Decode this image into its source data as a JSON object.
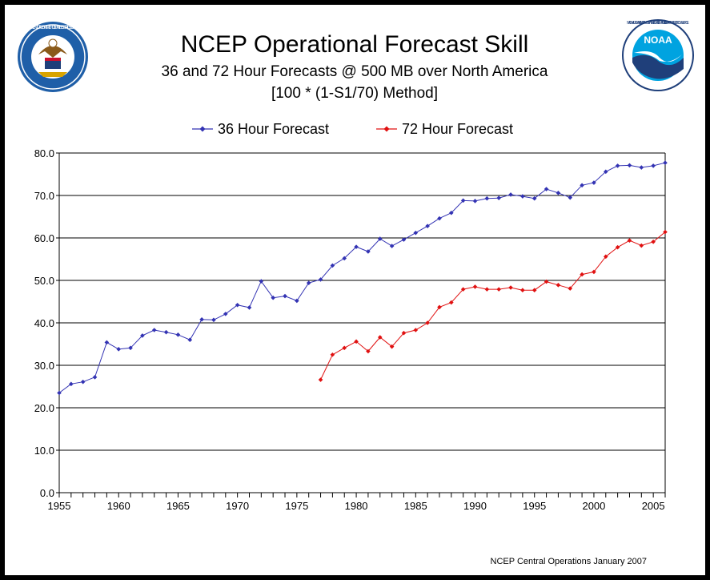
{
  "header": {
    "title": "NCEP Operational Forecast Skill",
    "subtitle_line1": "36 and 72 Hour Forecasts @ 500 MB over North America",
    "subtitle_line2": "[100 * (1-S1/70) Method]",
    "left_logo_text": "DEPARTMENT OF COMMERCE • UNITED STATES OF AMERICA",
    "right_logo_text": "NOAA",
    "right_logo_ring_text": "NATIONAL OCEANIC AND ATMOSPHERIC ADMINISTRATION • U.S. DEPARTMENT OF COMMERCE"
  },
  "footer": {
    "credit": "NCEP Central Operations January 2007"
  },
  "colors": {
    "series36": "#3333b3",
    "series72": "#e01010",
    "grid": "#000000"
  },
  "chart_data": {
    "type": "line",
    "title": "NCEP Operational Forecast Skill",
    "xlim": [
      1955,
      2006
    ],
    "ylim": [
      0,
      80
    ],
    "y_ticks": [
      "0.0",
      "10.0",
      "20.0",
      "30.0",
      "40.0",
      "50.0",
      "60.0",
      "70.0",
      "80.0"
    ],
    "x_ticks": [
      "1955",
      "1960",
      "1965",
      "1970",
      "1975",
      "1980",
      "1985",
      "1990",
      "1995",
      "2000",
      "2005"
    ],
    "grid": "horizontal",
    "legend": "top",
    "series": [
      {
        "name": "36 Hour Forecast",
        "color": "#3333b3",
        "x": [
          1955,
          1956,
          1957,
          1958,
          1959,
          1960,
          1961,
          1962,
          1963,
          1964,
          1965,
          1966,
          1967,
          1968,
          1969,
          1970,
          1971,
          1972,
          1973,
          1974,
          1975,
          1976,
          1977,
          1978,
          1979,
          1980,
          1981,
          1982,
          1983,
          1984,
          1985,
          1986,
          1987,
          1988,
          1989,
          1990,
          1991,
          1992,
          1993,
          1994,
          1995,
          1996,
          1997,
          1998,
          1999,
          2000,
          2001,
          2002,
          2003,
          2004,
          2005,
          2006
        ],
        "y": [
          23.5,
          25.6,
          26.1,
          27.2,
          35.4,
          33.8,
          34.1,
          37.0,
          38.3,
          37.8,
          37.2,
          36.0,
          40.8,
          40.7,
          42.1,
          44.2,
          43.6,
          49.8,
          45.9,
          46.3,
          45.2,
          49.4,
          50.2,
          53.5,
          55.2,
          57.9,
          56.8,
          59.8,
          58.1,
          59.6,
          61.2,
          62.8,
          64.6,
          65.9,
          68.8,
          68.7,
          69.3,
          69.4,
          70.2,
          69.8,
          69.3,
          71.5,
          70.6,
          69.5,
          72.4,
          73.0,
          75.6,
          77.0,
          77.1,
          76.6,
          77.0,
          77.7
        ]
      },
      {
        "name": "72 Hour Forecast",
        "color": "#e01010",
        "x": [
          1977,
          1978,
          1979,
          1980,
          1981,
          1982,
          1983,
          1984,
          1985,
          1986,
          1987,
          1988,
          1989,
          1990,
          1991,
          1992,
          1993,
          1994,
          1995,
          1996,
          1997,
          1998,
          1999,
          2000,
          2001,
          2002,
          2003,
          2004,
          2005,
          2006
        ],
        "y": [
          26.6,
          32.5,
          34.1,
          35.6,
          33.3,
          36.6,
          34.4,
          37.6,
          38.3,
          40.0,
          43.7,
          44.8,
          47.9,
          48.5,
          47.9,
          47.9,
          48.3,
          47.7,
          47.7,
          49.7,
          48.9,
          48.1,
          51.4,
          52.0,
          55.6,
          57.8,
          59.4,
          58.2,
          59.1,
          61.4
        ]
      }
    ]
  }
}
